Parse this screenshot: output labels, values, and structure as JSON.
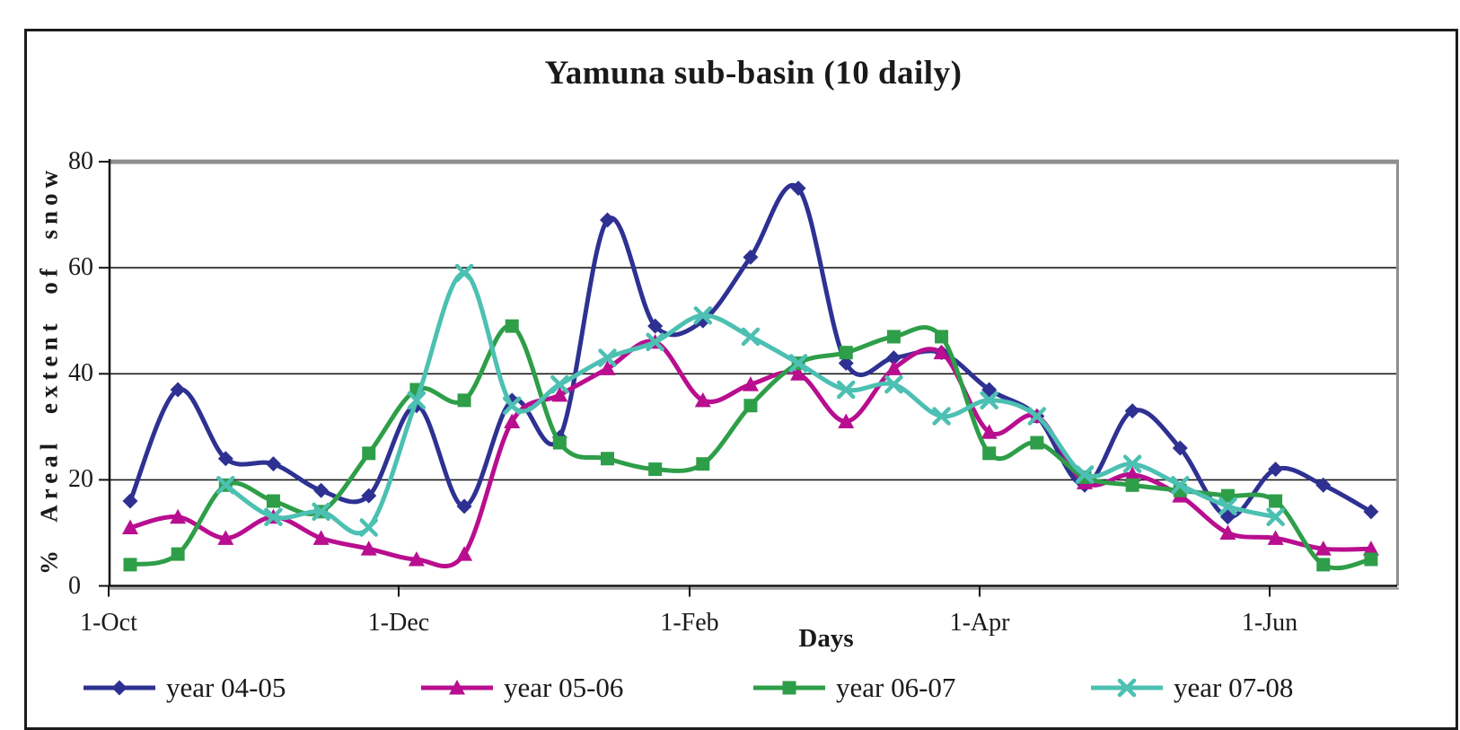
{
  "title": "Yamuna sub-basin (10 daily)",
  "x_axis": {
    "label": "Days",
    "ticks": [
      "1-Oct",
      "1-Dec",
      "1-Feb",
      "1-Apr",
      "1-Jun"
    ]
  },
  "y_axis": {
    "label": "% Areal extent of snow",
    "ticks": [
      0,
      20,
      40,
      60,
      80
    ],
    "min": 0,
    "max": 80
  },
  "chart_data": {
    "type": "line",
    "title": "Yamuna sub-basin (10 daily)",
    "xlabel": "Days",
    "ylabel": "% Areal extent of snow",
    "ylim": [
      0,
      80
    ],
    "grid": "horizontal",
    "legend_position": "bottom",
    "x_description": "27 ten-day periods from early October to late June",
    "x_tick_labels": [
      "1-Oct",
      "1-Dec",
      "1-Feb",
      "1-Apr",
      "1-Jun"
    ],
    "series": [
      {
        "name": "year 04-05",
        "color": "#2E3192",
        "marker": "diamond",
        "values": [
          16,
          37,
          24,
          23,
          18,
          17,
          34,
          15,
          35,
          28,
          69,
          49,
          50,
          62,
          75,
          42,
          43,
          44,
          37,
          32,
          19,
          33,
          26,
          13,
          22,
          19,
          14
        ]
      },
      {
        "name": "year 05-06",
        "color": "#B80E8F",
        "marker": "triangle-up",
        "values": [
          11,
          13,
          9,
          13,
          9,
          7,
          5,
          6,
          31,
          36,
          41,
          46,
          35,
          38,
          40,
          31,
          41,
          44,
          29,
          32,
          19.5,
          21,
          17,
          10,
          9,
          7,
          7
        ]
      },
      {
        "name": "year 06-07",
        "color": "#2E9E48",
        "marker": "square",
        "values": [
          4,
          6,
          19,
          16,
          14,
          25,
          37,
          35,
          49,
          27,
          24,
          22,
          23,
          34,
          42,
          44,
          47,
          47,
          25,
          27,
          20.5,
          19,
          18,
          17,
          16,
          4,
          5
        ]
      },
      {
        "name": "year 07-08",
        "color": "#4CC0B2",
        "marker": "x-cross",
        "values": [
          null,
          null,
          19,
          13,
          14,
          11,
          35,
          59,
          34,
          38,
          43,
          46,
          51,
          47,
          42,
          37,
          38,
          32,
          35,
          32,
          21,
          23,
          19,
          15,
          13,
          null,
          null
        ]
      }
    ]
  }
}
